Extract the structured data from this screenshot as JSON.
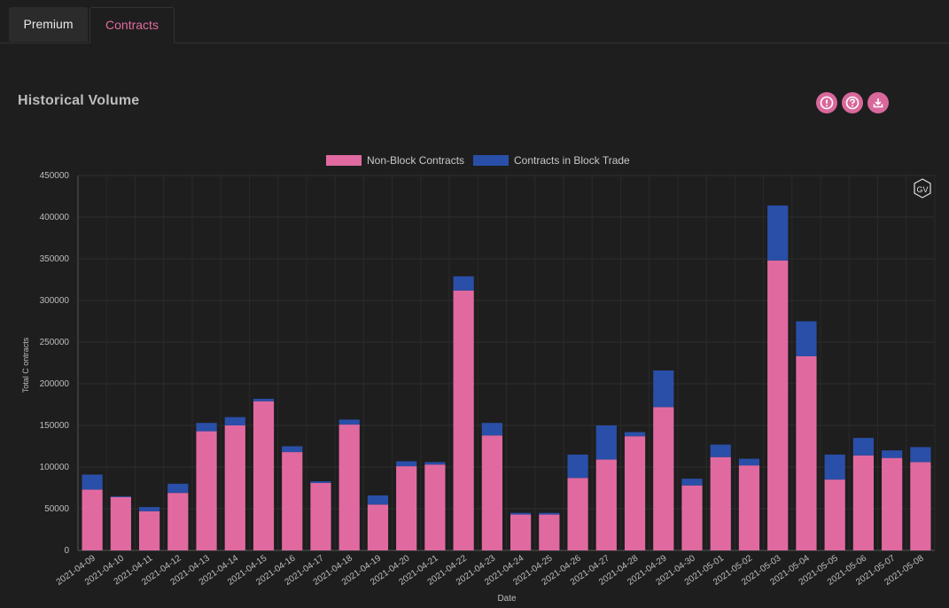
{
  "tabs": [
    {
      "label": "Premium"
    },
    {
      "label": "Contracts"
    }
  ],
  "panel": {
    "title": "Historical Volume",
    "icons": [
      "alert-icon",
      "help-icon",
      "download-icon"
    ]
  },
  "colors": {
    "accent": "#e06c9f",
    "non_block": "#e06aa0",
    "block": "#2a4fa8",
    "background": "#1e1e1e"
  },
  "watermark": "GV",
  "chart_data": {
    "type": "bar",
    "stacked": true,
    "title": "",
    "xlabel": "Date",
    "ylabel": "Total C ontracts",
    "ylim": [
      0,
      450000
    ],
    "yticks": [
      0,
      50000,
      100000,
      150000,
      200000,
      250000,
      300000,
      350000,
      400000,
      450000
    ],
    "grid": true,
    "legend_position": "top-center",
    "categories": [
      "2021-04-09",
      "2021-04-10",
      "2021-04-11",
      "2021-04-12",
      "2021-04-13",
      "2021-04-14",
      "2021-04-15",
      "2021-04-16",
      "2021-04-17",
      "2021-04-18",
      "2021-04-19",
      "2021-04-20",
      "2021-04-21",
      "2021-04-22",
      "2021-04-23",
      "2021-04-24",
      "2021-04-25",
      "2021-04-26",
      "2021-04-27",
      "2021-04-28",
      "2021-04-29",
      "2021-04-30",
      "2021-05-01",
      "2021-05-02",
      "2021-05-03",
      "2021-05-04",
      "2021-05-05",
      "2021-05-06",
      "2021-05-07",
      "2021-05-08"
    ],
    "series": [
      {
        "name": "Non-Block Contracts",
        "color": "#e06aa0",
        "values": [
          73000,
          64000,
          47000,
          69000,
          143000,
          150000,
          179000,
          118000,
          81000,
          151000,
          55000,
          101000,
          103000,
          312000,
          138000,
          43000,
          43000,
          87000,
          109000,
          137000,
          172000,
          78000,
          112000,
          102000,
          348000,
          233000,
          85000,
          114000,
          111000,
          106000
        ]
      },
      {
        "name": "Contracts in Block Trade",
        "color": "#2a4fa8",
        "values": [
          18000,
          1000,
          5000,
          11000,
          10000,
          10000,
          3000,
          7000,
          2000,
          6000,
          11000,
          6000,
          3000,
          17000,
          15000,
          2000,
          2000,
          28000,
          41000,
          5000,
          44000,
          8000,
          15000,
          8000,
          66000,
          42000,
          30000,
          21000,
          9000,
          18000
        ]
      }
    ]
  }
}
